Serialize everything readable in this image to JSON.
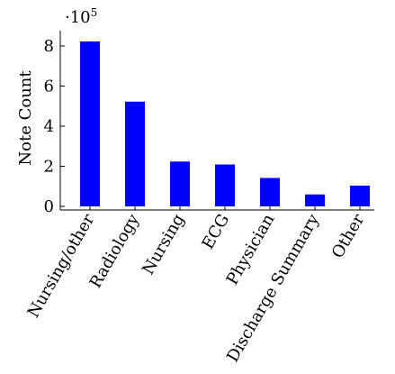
{
  "chart_data": {
    "type": "bar",
    "categories": [
      "Nursing/other",
      "Radiology",
      "Nursing",
      "ECG",
      "Physician",
      "Discharge Summary",
      "Other"
    ],
    "values": [
      822497,
      522279,
      223556,
      209051,
      141624,
      59652,
      103519
    ],
    "ylabel": "Note Count",
    "xlabel": "",
    "ylim": [
      0,
      900000
    ],
    "yticks": [
      0,
      2,
      4,
      6,
      8
    ],
    "y_multiplier_label": {
      "base": "·10",
      "exp": "5"
    },
    "bar_color": "#0000ff",
    "grid": false,
    "legend": "none"
  }
}
